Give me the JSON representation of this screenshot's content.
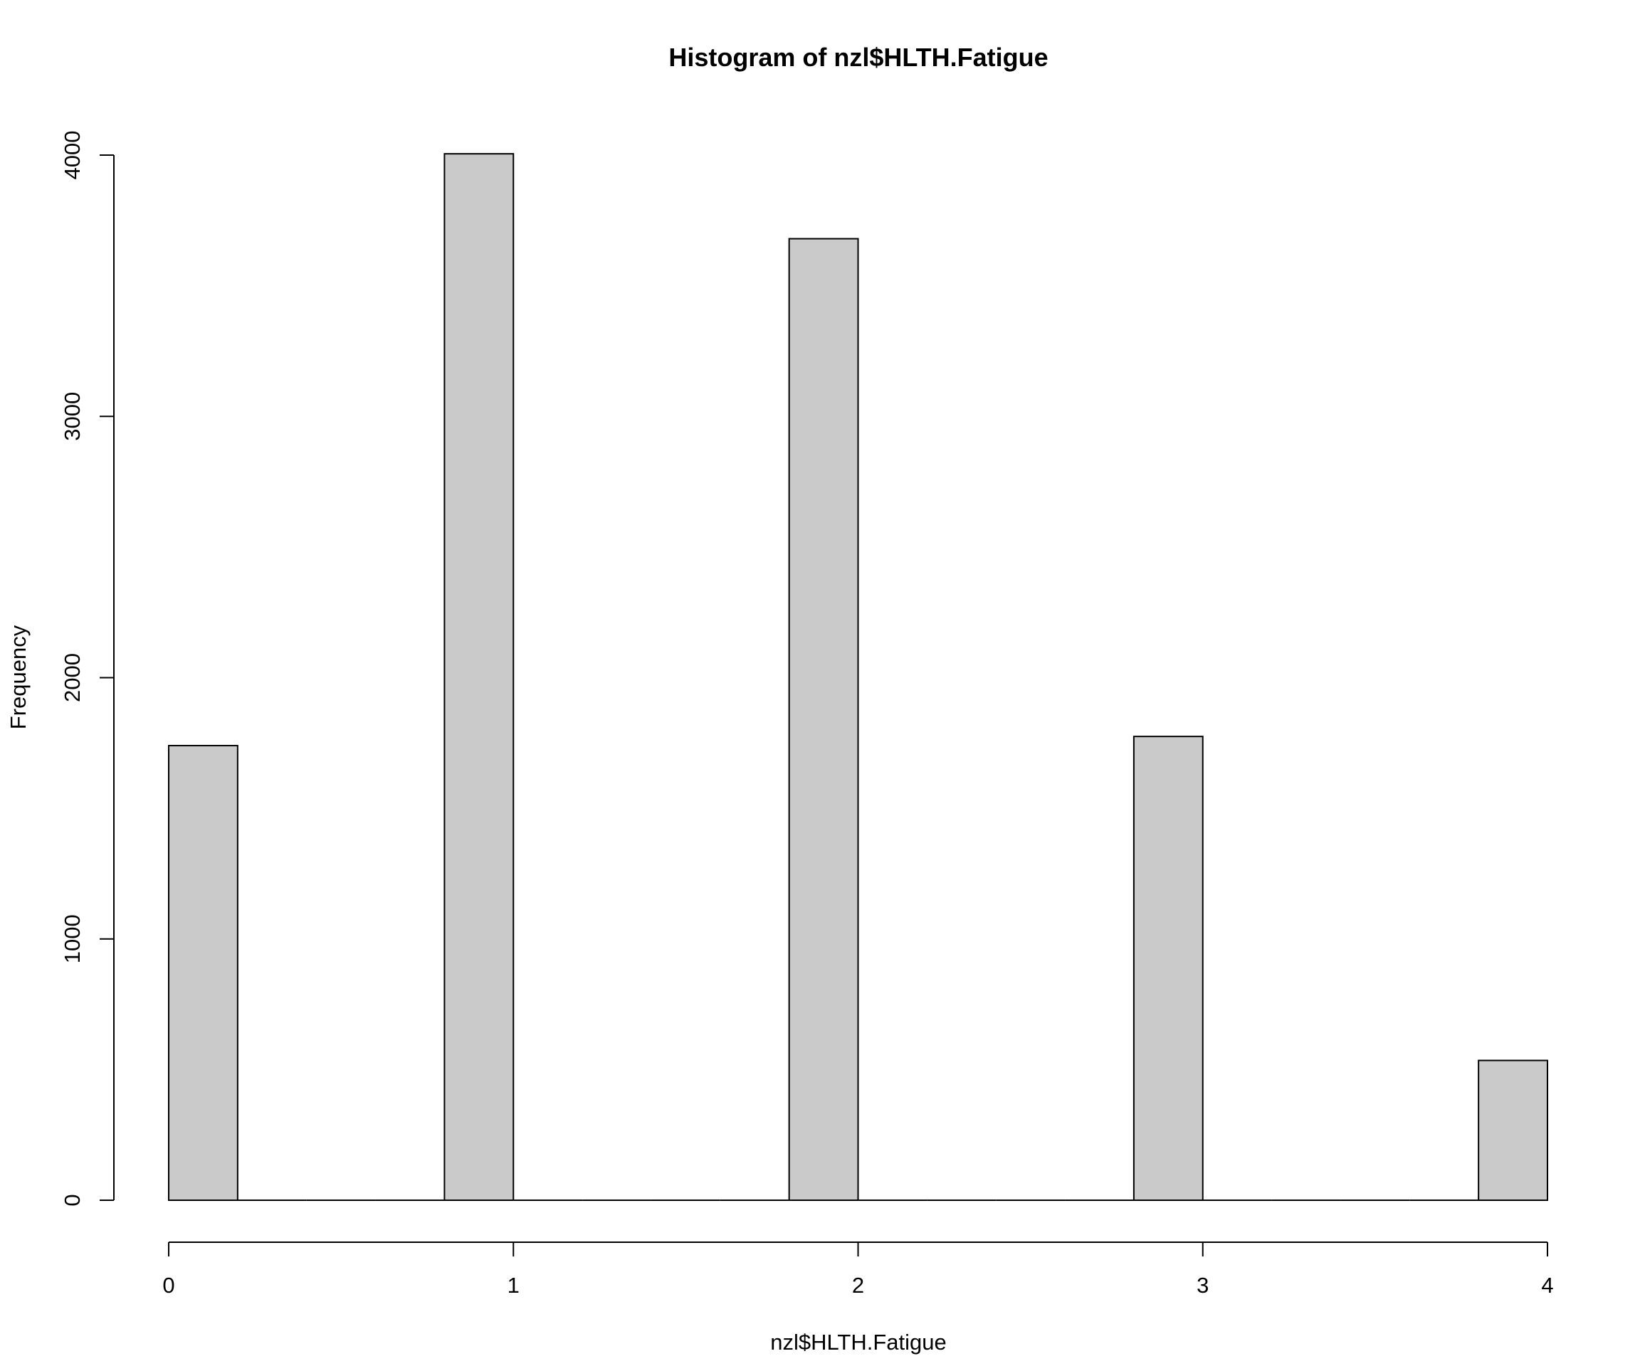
{
  "chart_data": {
    "type": "bar",
    "title": "Histogram of nzl$HLTH.Fatigue",
    "xlabel": "nzl$HLTH.Fatigue",
    "ylabel": "Frequency",
    "xlim": [
      0,
      4
    ],
    "ylim": [
      0,
      4000
    ],
    "x_ticks": [
      0,
      1,
      2,
      3,
      4
    ],
    "y_ticks": [
      0,
      1000,
      2000,
      3000,
      4000
    ],
    "bins": [
      {
        "x0": 0.0,
        "x1": 0.2,
        "value": 1740
      },
      {
        "x0": 0.2,
        "x1": 0.4,
        "value": 0
      },
      {
        "x0": 0.4,
        "x1": 0.6,
        "value": 0
      },
      {
        "x0": 0.6,
        "x1": 0.8,
        "value": 0
      },
      {
        "x0": 0.8,
        "x1": 1.0,
        "value": 4005
      },
      {
        "x0": 1.0,
        "x1": 1.2,
        "value": 0
      },
      {
        "x0": 1.2,
        "x1": 1.4,
        "value": 0
      },
      {
        "x0": 1.4,
        "x1": 1.6,
        "value": 0
      },
      {
        "x0": 1.6,
        "x1": 1.8,
        "value": 0
      },
      {
        "x0": 1.8,
        "x1": 2.0,
        "value": 3680
      },
      {
        "x0": 2.0,
        "x1": 2.2,
        "value": 0
      },
      {
        "x0": 2.2,
        "x1": 2.4,
        "value": 0
      },
      {
        "x0": 2.4,
        "x1": 2.6,
        "value": 0
      },
      {
        "x0": 2.6,
        "x1": 2.8,
        "value": 0
      },
      {
        "x0": 2.8,
        "x1": 3.0,
        "value": 1775
      },
      {
        "x0": 3.0,
        "x1": 3.2,
        "value": 0
      },
      {
        "x0": 3.2,
        "x1": 3.4,
        "value": 0
      },
      {
        "x0": 3.4,
        "x1": 3.6,
        "value": 0
      },
      {
        "x0": 3.6,
        "x1": 3.8,
        "value": 0
      },
      {
        "x0": 3.8,
        "x1": 4.0,
        "value": 535
      }
    ],
    "grid": false,
    "colors": {
      "bar_fill": "#cacaca",
      "bar_stroke": "#000000"
    }
  }
}
